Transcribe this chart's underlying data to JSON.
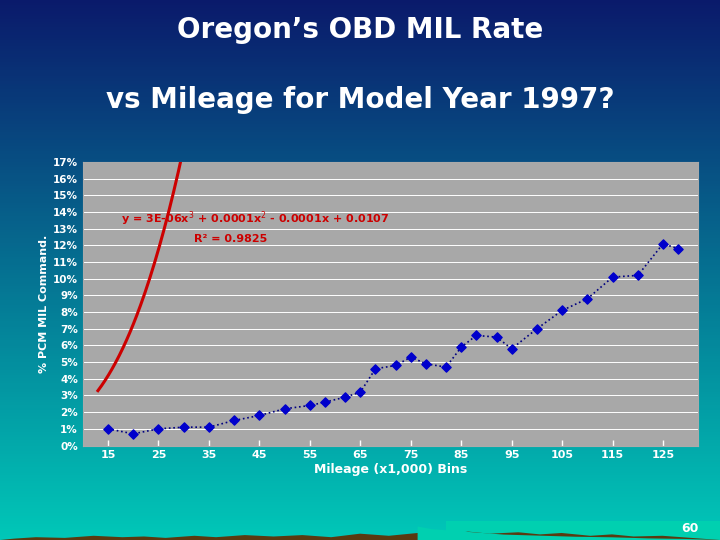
{
  "title_line1": "Oregon’s OBD MIL Rate",
  "title_line2": "vs Mileage for Model Year 1997?",
  "xlabel": "Mileage (x1,000) Bins",
  "ylabel": "% PCM MIL Command.",
  "slide_number": "60",
  "background_top": "#0a1a6b",
  "background_bottom": "#00c8b8",
  "plot_bg": "#a8a8a8",
  "title_color": "#ffffff",
  "x_ticks": [
    15,
    25,
    35,
    45,
    55,
    65,
    75,
    85,
    95,
    105,
    115,
    125
  ],
  "y_ticks": [
    0,
    1,
    2,
    3,
    4,
    5,
    6,
    7,
    8,
    9,
    10,
    11,
    12,
    13,
    14,
    15,
    16,
    17
  ],
  "scatter_x": [
    15,
    20,
    25,
    30,
    35,
    40,
    45,
    50,
    55,
    58,
    62,
    65,
    68,
    72,
    75,
    78,
    82,
    85,
    88,
    92,
    95,
    100,
    105,
    110,
    115,
    120,
    125,
    128
  ],
  "scatter_y": [
    1.0,
    0.7,
    1.0,
    1.1,
    1.1,
    1.5,
    1.8,
    2.2,
    2.4,
    2.6,
    2.9,
    3.2,
    4.6,
    4.8,
    5.3,
    4.9,
    4.7,
    5.9,
    6.6,
    6.5,
    5.8,
    7.0,
    8.1,
    8.8,
    10.1,
    10.2,
    12.1,
    11.8
  ],
  "scatter_color": "#0000cc",
  "scatter_marker": "D",
  "scatter_size": 22,
  "line_color": "#000080",
  "line_style": ":",
  "curve_color": "#cc0000",
  "curve_lw": 2.2,
  "poly_coeffs": [
    3e-06,
    0.0001,
    -0.0001,
    0.0107
  ],
  "equation_color": "#cc0000",
  "r2_text": "R² = 0.9825",
  "grid_color": "#ffffff",
  "ylim": [
    0,
    17
  ],
  "xlim": [
    10,
    132
  ],
  "mountain_color": "#5a3a10",
  "teal_color": "#00d0b0"
}
